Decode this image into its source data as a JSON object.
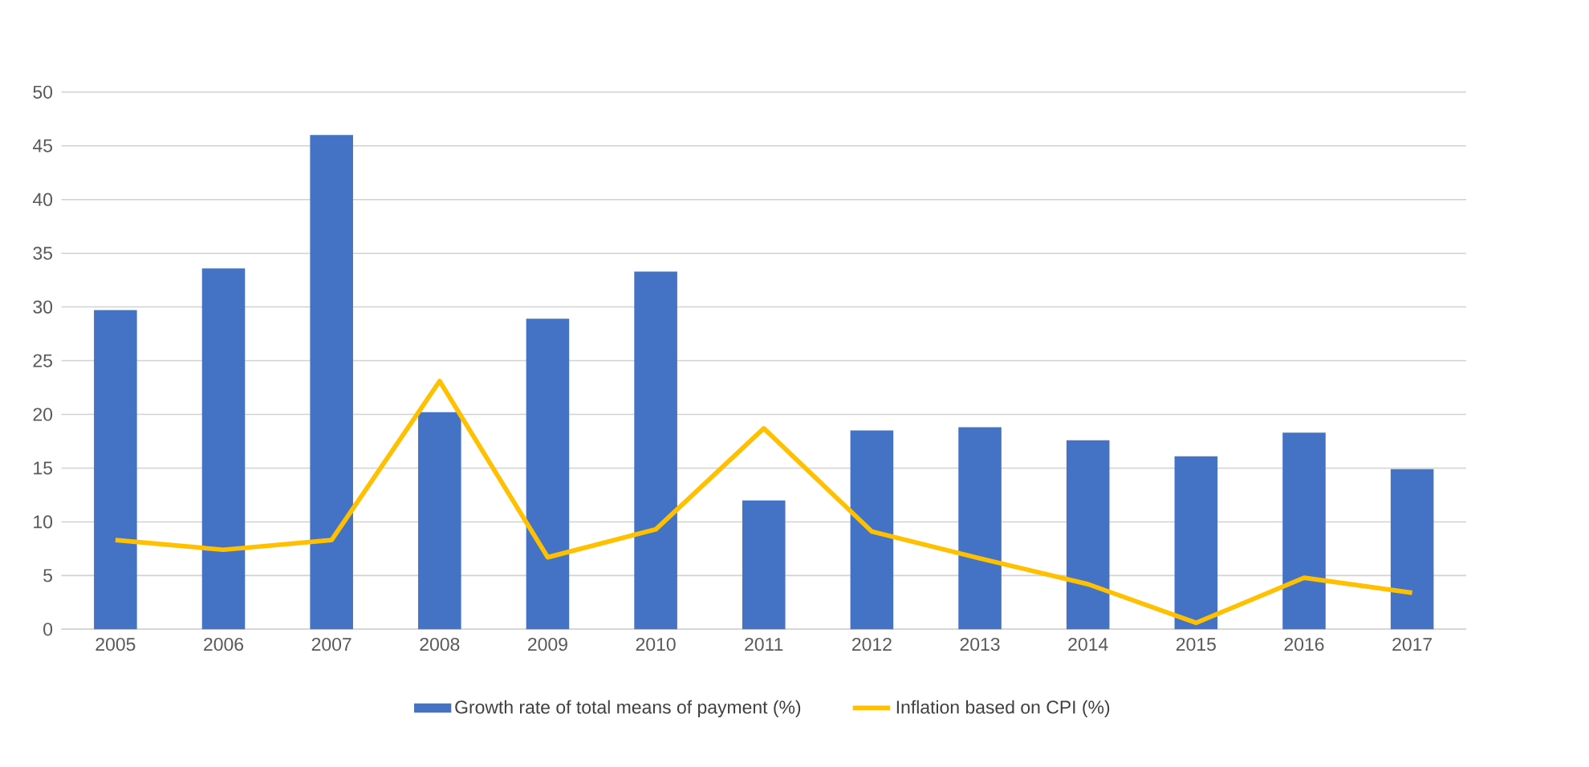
{
  "chart_data": {
    "type": "bar",
    "categories": [
      "2005",
      "2006",
      "2007",
      "2008",
      "2009",
      "2010",
      "2011",
      "2012",
      "2013",
      "2014",
      "2015",
      "2016",
      "2017"
    ],
    "series": [
      {
        "name": "Growth rate of total means of payment  (%)",
        "color": "#4472c4",
        "values": [
          29.7,
          33.6,
          46.0,
          20.2,
          28.9,
          33.3,
          12.0,
          18.5,
          18.8,
          17.6,
          16.1,
          18.3,
          14.9
        ]
      },
      {
        "name": "Inflation based on CPI (%)",
        "type": "line",
        "color": "#ffc000",
        "values": [
          8.3,
          7.4,
          8.3,
          23.1,
          6.7,
          9.3,
          18.7,
          9.1,
          6.6,
          4.2,
          0.6,
          4.8,
          3.4
        ]
      }
    ],
    "ylim": [
      0,
      50
    ],
    "yticks": [
      0,
      5,
      10,
      15,
      20,
      25,
      30,
      35,
      40,
      45,
      50
    ],
    "grid": "y",
    "legend": "bottom"
  }
}
